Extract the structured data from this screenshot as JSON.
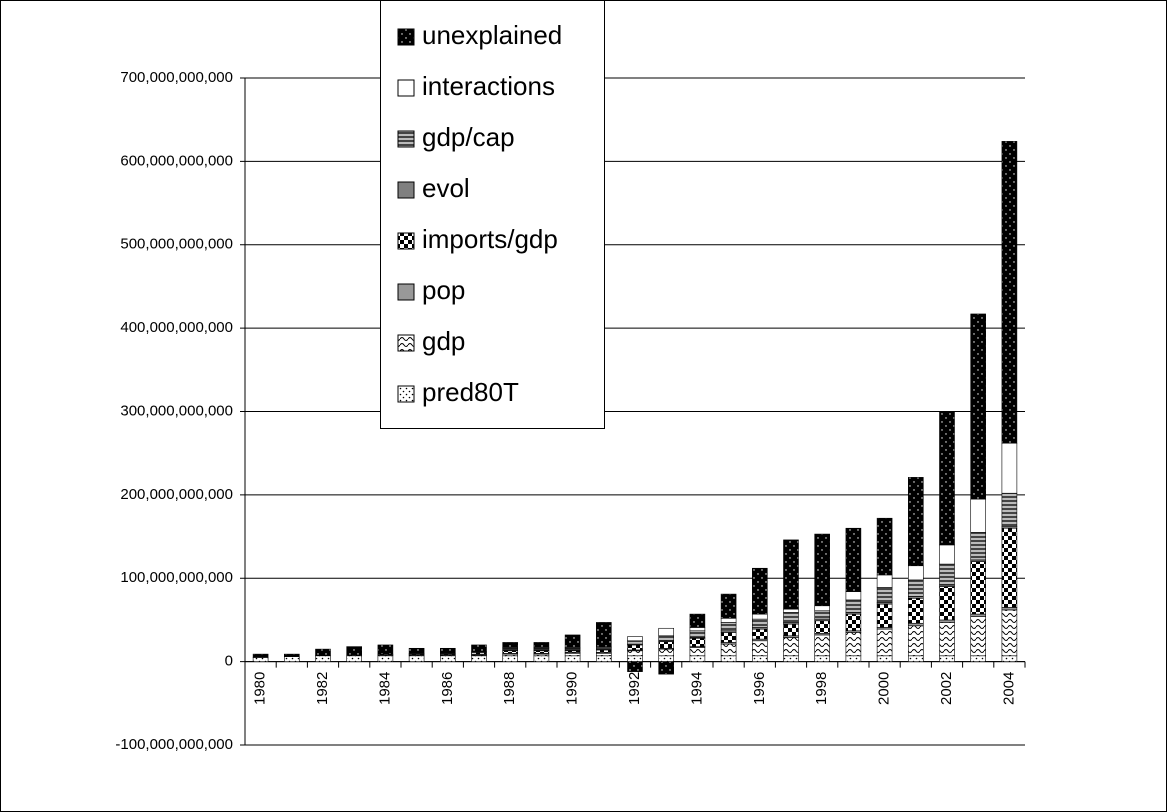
{
  "chart_data": {
    "type": "stacked-bar",
    "categories": [
      "1980",
      null,
      "1982",
      null,
      "1984",
      null,
      "1986",
      null,
      "1988",
      null,
      "1990",
      null,
      "1992",
      null,
      "1994",
      null,
      "1996",
      null,
      "1998",
      null,
      "2000",
      null,
      "2002",
      null,
      "2004"
    ],
    "series": [
      {
        "name": "pred80T",
        "color": "#ffffff",
        "values": [
          5000000000.0,
          6000000000.0,
          7000000000.0,
          7000000000.0,
          7000000000.0,
          7000000000.0,
          7000000000.0,
          7000000000.0,
          7000000000.0,
          7000000000.0,
          7000000000.0,
          7000000000.0,
          7000000000.0,
          7000000000.0,
          7000000000.0,
          7000000000.0,
          7000000000.0,
          7000000000.0,
          7000000000.0,
          7000000000.0,
          7000000000.0,
          7000000000.0,
          7000000000.0,
          7000000000.0,
          7000000000.0
        ]
      },
      {
        "name": "gdp",
        "color": "#ffffff",
        "values": [
          0,
          0,
          0,
          0,
          1000000000.0,
          1000000000.0,
          1000000000.0,
          1000000000.0,
          2000000000.0,
          2000000000.0,
          3000000000.0,
          3000000000.0,
          6000000000.0,
          8000000000.0,
          10000000000.0,
          14000000000.0,
          18000000000.0,
          22000000000.0,
          25000000000.0,
          28000000000.0,
          32000000000.0,
          36000000000.0,
          40000000000.0,
          47000000000.0,
          55000000000.0
        ]
      },
      {
        "name": "pop",
        "color": "#999999",
        "values": [
          0,
          0,
          0,
          0,
          0,
          0,
          0,
          1000000000.0,
          1000000000.0,
          1000000000.0,
          1000000000.0,
          1000000000.0,
          1000000000.0,
          1000000000.0,
          1000000000.0,
          2000000000.0,
          2000000000.0,
          2000000000.0,
          2000000000.0,
          2000000000.0,
          2000000000.0,
          3000000000.0,
          3000000000.0,
          3000000000.0,
          3000000000.0
        ]
      },
      {
        "name": "imports/gdp",
        "color": "#000000",
        "values": [
          0,
          0,
          0,
          1000000000.0,
          1000000000.0,
          1000000000.0,
          1000000000.0,
          2000000000.0,
          3000000000.0,
          3000000000.0,
          2000000000.0,
          3000000000.0,
          6000000000.0,
          8000000000.0,
          10000000000.0,
          12000000000.0,
          12000000000.0,
          14000000000.0,
          15000000000.0,
          20000000000.0,
          28000000000.0,
          30000000000.0,
          40000000000.0,
          63000000000.0,
          95000000000.0
        ]
      },
      {
        "name": "evol",
        "color": "#808080",
        "values": [
          0,
          0,
          0,
          0,
          0,
          0,
          0,
          0,
          1000000000.0,
          1000000000.0,
          1000000000.0,
          1000000000.0,
          1000000000.0,
          1000000000.0,
          1000000000.0,
          2000000000.0,
          2000000000.0,
          2000000000.0,
          2000000000.0,
          2000000000.0,
          2000000000.0,
          2000000000.0,
          2000000000.0,
          2000000000.0,
          2000000000.0
        ]
      },
      {
        "name": "gdp/cap",
        "color": "#666666",
        "values": [
          0,
          0,
          0,
          0,
          0,
          1000000000.0,
          1000000000.0,
          1000000000.0,
          2000000000.0,
          2000000000.0,
          2000000000.0,
          2000000000.0,
          4000000000.0,
          6000000000.0,
          8000000000.0,
          10000000000.0,
          10000000000.0,
          12000000000.0,
          10000000000.0,
          15000000000.0,
          18000000000.0,
          20000000000.0,
          25000000000.0,
          33000000000.0,
          40000000000.0
        ]
      },
      {
        "name": "interactions",
        "color": "#ffffff",
        "values": [
          0,
          0,
          0,
          0,
          0,
          0,
          0,
          0,
          1000000000.0,
          1000000000.0,
          1000000000.0,
          1000000000.0,
          5000000000.0,
          9000000000.0,
          4000000000.0,
          5000000000.0,
          6000000000.0,
          4000000000.0,
          6000000000.0,
          10000000000.0,
          15000000000.0,
          17000000000.0,
          23000000000.0,
          40000000000.0,
          60000000000.0
        ]
      },
      {
        "name": "unexplained",
        "color": "#000000",
        "values": [
          4000000000.0,
          3000000000.0,
          8000000000.0,
          10000000000.0,
          11000000000.0,
          6000000000.0,
          6000000000.0,
          8000000000.0,
          6000000000.0,
          6000000000.0,
          15000000000.0,
          29000000000.0,
          -12000000000.0,
          -15000000000.0,
          16000000000.0,
          29000000000.0,
          55000000000.0,
          83000000000.0,
          86000000000.0,
          76000000000.0,
          68000000000.0,
          106000000000.0,
          160000000000.0,
          222000000000.0,
          362000000000.0
        ]
      }
    ],
    "ylim": [
      -100000000000,
      700000000000
    ],
    "yticks": [
      {
        "value": -100000000000,
        "label": "-100,000,000,000"
      },
      0,
      {
        "value": 100000000000,
        "label": "100,000,000,000"
      },
      {
        "value": 200000000000,
        "label": "200,000,000,000"
      },
      {
        "value": 300000000000,
        "label": "300,000,000,000"
      },
      {
        "value": 400000000000,
        "label": "400,000,000,000"
      },
      {
        "value": 500000000000,
        "label": "500,000,000,000"
      },
      {
        "value": 600000000000,
        "label": "600,000,000,000"
      },
      {
        "value": 700000000000,
        "label": "700,000,000,000"
      }
    ],
    "grid": true
  }
}
